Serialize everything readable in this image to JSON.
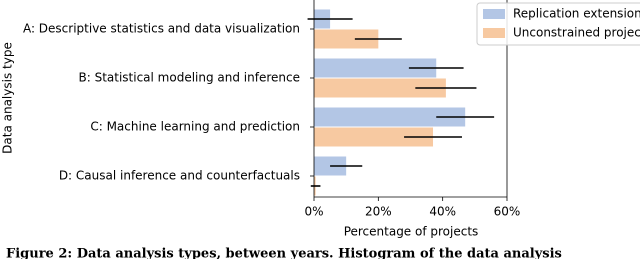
{
  "chart_data": {
    "type": "barh",
    "categories": [
      "A: Descriptive statistics and data visualization",
      "B: Statistical modeling and inference",
      "C: Machine learning and prediction",
      "D: Causal inference and counterfactuals"
    ],
    "series": [
      {
        "name": "Replication extensions",
        "color": "#b3c6e5",
        "values": [
          5,
          38,
          47,
          10
        ],
        "errors": [
          7,
          8.5,
          9,
          5
        ]
      },
      {
        "name": "Unconstrained projects",
        "color": "#f7c9a1",
        "values": [
          20,
          41,
          37,
          0.5
        ],
        "errors": [
          7.3,
          9.5,
          9,
          1.5
        ]
      }
    ],
    "xlim": [
      0,
      60
    ],
    "xticks": [
      {
        "value": 0,
        "label": "0%"
      },
      {
        "value": 20,
        "label": "20%"
      },
      {
        "value": 40,
        "label": "40%"
      },
      {
        "value": 60,
        "label": "60%"
      }
    ],
    "xlabel": "Percentage of projects",
    "ylabel": "Data analysis type",
    "legend": "upper right",
    "caption": "Figure 2: Data analysis types, between years. Histogram of the data analysis"
  }
}
